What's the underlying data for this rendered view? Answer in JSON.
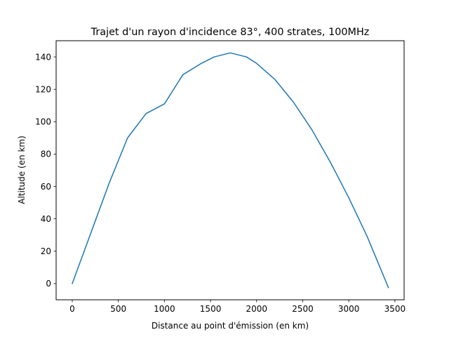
{
  "chart_data": {
    "type": "line",
    "title": "Trajet d'un rayon d'incidence 83°, 400 strates, 100MHz",
    "xlabel": "Distance au point d'émission (en km)",
    "ylabel": "Altitude (en km)",
    "xlim": [
      -175,
      3600
    ],
    "ylim": [
      -10,
      150
    ],
    "xticks": [
      0,
      500,
      1000,
      1500,
      2000,
      2500,
      3000,
      3500
    ],
    "yticks": [
      0,
      20,
      40,
      60,
      80,
      100,
      120,
      140
    ],
    "xtick_labels": [
      "0",
      "500",
      "1000",
      "1500",
      "2000",
      "2500",
      "3000",
      "3500"
    ],
    "ytick_labels": [
      "0",
      "20",
      "40",
      "60",
      "80",
      "100",
      "120",
      "140"
    ],
    "grid": false,
    "series": [
      {
        "color": "#1f77b4",
        "x": [
          0,
          200,
          400,
          600,
          800,
          1000,
          1200,
          1400,
          1540,
          1715,
          1890,
          2000,
          2200,
          2400,
          2600,
          2800,
          3000,
          3200,
          3430
        ],
        "y": [
          0,
          31,
          62,
          90,
          105,
          111,
          129,
          136,
          140,
          142.5,
          140,
          136,
          126,
          112,
          95,
          75,
          53,
          29,
          -2.5
        ]
      }
    ]
  }
}
